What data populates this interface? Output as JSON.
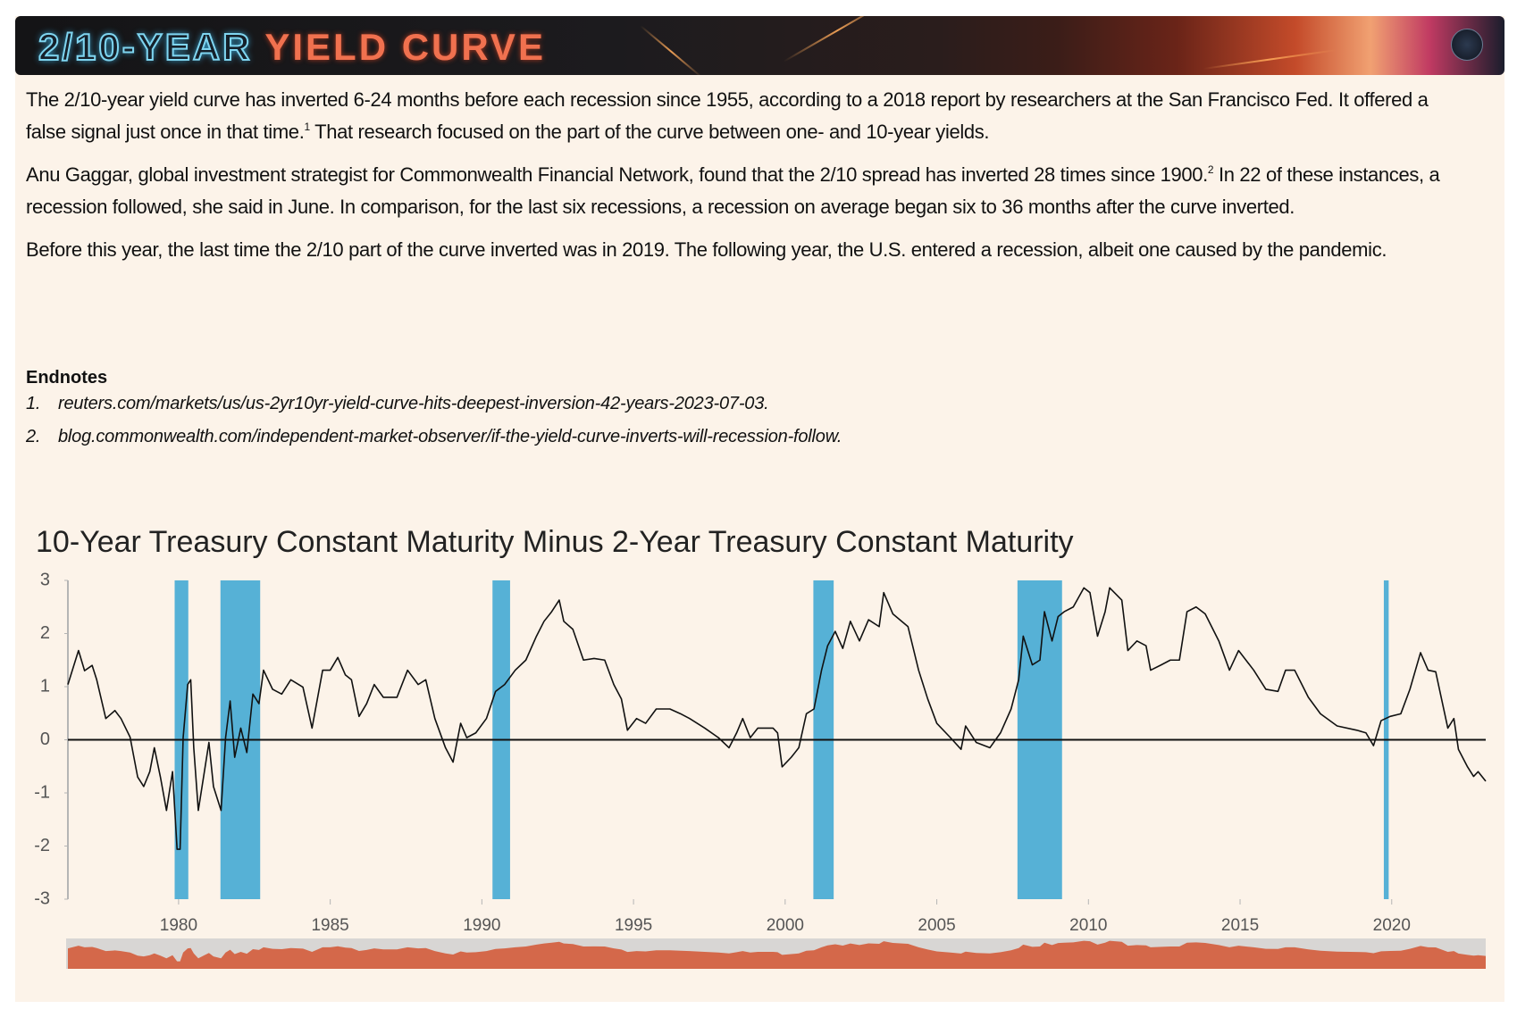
{
  "header": {
    "title_part1": "2/10-YEAR",
    "title_part2": "YIELD CURVE"
  },
  "body": {
    "paragraphs": [
      [
        "The 2/10-year yield curve has inverted 6-24 months before each recession since 1955, according to a 2018 report by researchers at the San Francisco Fed. It offered a false signal just once in that time.",
        "1",
        " That research focused on the part of the curve between one- and 10-year yields."
      ],
      [
        "Anu Gaggar, global investment strategist for Commonwealth Financial Network, found that the 2/10 spread has inverted 28 times since 1900.",
        "2",
        " In 22 of these instances, a recession followed, she said in June. In comparison, for the last six recessions, a recession on average began six to 36 months after the curve inverted."
      ],
      [
        "Before this year, the last time the 2/10 part of the curve inverted was in 2019. The following year, the U.S. entered a recession, albeit one caused by the pandemic."
      ]
    ]
  },
  "endnotes": {
    "heading": "Endnotes",
    "items": [
      {
        "number": "1.",
        "text": "reuters.com/markets/us/us-2yr10yr-yield-curve-hits-deepest-inversion-42-years-2023-07-03."
      },
      {
        "number": "2.",
        "text": "blog.commonwealth.com/independent-market-observer/if-the-yield-curve-inverts-will-recession-follow."
      }
    ]
  },
  "chart_data": {
    "type": "line",
    "title": "10-Year Treasury Constant Maturity Minus 2-Year Treasury Constant Maturity",
    "color": "#111111",
    "x": [
      1976.35,
      1976.7,
      1976.9,
      1977.15,
      1977.3,
      1977.6,
      1977.9,
      1978.1,
      1978.4,
      1978.65,
      1978.85,
      1979.05,
      1979.2,
      1979.4,
      1979.6,
      1979.8,
      1979.95,
      1980.05,
      1980.15,
      1980.3,
      1980.4,
      1980.5,
      1980.65,
      1980.85,
      1981.0,
      1981.15,
      1981.4,
      1981.55,
      1981.7,
      1981.85,
      1982.05,
      1982.25,
      1982.45,
      1982.65,
      1982.8,
      1983.1,
      1983.4,
      1983.7,
      1984.1,
      1984.4,
      1984.75,
      1985.0,
      1985.25,
      1985.5,
      1985.7,
      1985.95,
      1986.2,
      1986.45,
      1986.75,
      1987.2,
      1987.55,
      1987.9,
      1988.15,
      1988.45,
      1988.8,
      1989.05,
      1989.3,
      1989.5,
      1989.8,
      1990.15,
      1990.45,
      1990.75,
      1991.1,
      1991.45,
      1991.8,
      1992.05,
      1992.3,
      1992.55,
      1992.7,
      1993.0,
      1993.35,
      1993.7,
      1994.05,
      1994.35,
      1994.6,
      1994.8,
      1995.1,
      1995.4,
      1995.75,
      1996.2,
      1996.55,
      1996.85,
      1997.35,
      1997.8,
      1998.15,
      1998.4,
      1998.6,
      1998.85,
      1999.1,
      1999.6,
      1999.75,
      1999.9,
      2000.2,
      2000.45,
      2000.7,
      2000.95,
      2001.2,
      2001.4,
      2001.65,
      2001.9,
      2002.15,
      2002.45,
      2002.75,
      2003.1,
      2003.25,
      2003.55,
      2004.05,
      2004.4,
      2004.7,
      2005.0,
      2005.45,
      2005.8,
      2005.95,
      2006.3,
      2006.75,
      2007.1,
      2007.45,
      2007.7,
      2007.85,
      2008.15,
      2008.4,
      2008.55,
      2008.8,
      2009.0,
      2009.2,
      2009.5,
      2009.85,
      2010.05,
      2010.3,
      2010.55,
      2010.7,
      2011.1,
      2011.3,
      2011.6,
      2011.9,
      2012.05,
      2012.4,
      2012.7,
      2013.0,
      2013.25,
      2013.55,
      2013.85,
      2014.3,
      2014.65,
      2014.95,
      2015.45,
      2015.85,
      2016.25,
      2016.5,
      2016.8,
      2017.25,
      2017.65,
      2018.2,
      2018.85,
      2019.15,
      2019.4,
      2019.65,
      2019.95,
      2020.3,
      2020.6,
      2020.95,
      2021.2,
      2021.45,
      2021.85,
      2022.05,
      2022.2,
      2022.5,
      2022.7,
      2022.85,
      2023.1
    ],
    "values": [
      1.04,
      1.68,
      1.3,
      1.4,
      1.13,
      0.4,
      0.55,
      0.4,
      0.05,
      -0.7,
      -0.88,
      -0.6,
      -0.15,
      -0.7,
      -1.33,
      -0.6,
      -2.06,
      -2.06,
      0.04,
      1.04,
      1.13,
      -0.15,
      -1.33,
      -0.6,
      -0.05,
      -0.88,
      -1.33,
      0.04,
      0.73,
      -0.33,
      0.22,
      -0.24,
      0.86,
      0.68,
      1.31,
      0.95,
      0.86,
      1.13,
      0.99,
      0.22,
      1.31,
      1.31,
      1.55,
      1.22,
      1.13,
      0.44,
      0.68,
      1.04,
      0.8,
      0.8,
      1.31,
      1.04,
      1.13,
      0.4,
      -0.15,
      -0.42,
      0.31,
      0.04,
      0.13,
      0.4,
      0.91,
      1.04,
      1.31,
      1.5,
      1.95,
      2.23,
      2.41,
      2.63,
      2.23,
      2.08,
      1.5,
      1.53,
      1.5,
      1.04,
      0.77,
      0.18,
      0.4,
      0.31,
      0.58,
      0.58,
      0.49,
      0.4,
      0.22,
      0.04,
      -0.15,
      0.13,
      0.4,
      0.04,
      0.22,
      0.22,
      0.13,
      -0.51,
      -0.33,
      -0.15,
      0.49,
      0.58,
      1.31,
      1.77,
      2.04,
      1.72,
      2.23,
      1.86,
      2.26,
      2.13,
      2.77,
      2.37,
      2.13,
      1.31,
      0.77,
      0.31,
      0.04,
      -0.18,
      0.26,
      -0.05,
      -0.15,
      0.13,
      0.58,
      1.13,
      1.95,
      1.41,
      1.5,
      2.41,
      1.86,
      2.32,
      2.41,
      2.5,
      2.86,
      2.77,
      1.95,
      2.41,
      2.86,
      2.63,
      1.68,
      1.86,
      1.77,
      1.31,
      1.41,
      1.5,
      1.5,
      2.41,
      2.5,
      2.37,
      1.86,
      1.31,
      1.68,
      1.31,
      0.95,
      0.91,
      1.31,
      1.31,
      0.8,
      0.49,
      0.26,
      0.18,
      0.13,
      -0.11,
      0.36,
      0.44,
      0.49,
      0.95,
      1.64,
      1.31,
      1.28,
      0.22,
      0.4,
      -0.18,
      -0.51,
      -0.69,
      -0.6,
      -0.78
    ],
    "bands": [
      {
        "start": 1979.87,
        "end": 1980.32
      },
      {
        "start": 1981.38,
        "end": 1982.69
      },
      {
        "start": 1990.35,
        "end": 1990.93
      },
      {
        "start": 2000.93,
        "end": 2001.6
      },
      {
        "start": 2007.66,
        "end": 2009.13
      },
      {
        "start": 2019.74,
        "end": 2019.9
      }
    ],
    "band_color": "#56b1d6",
    "xlim": [
      1976.35,
      2023.1
    ],
    "xticks": [
      1980,
      1985,
      1990,
      1995,
      2000,
      2005,
      2010,
      2015,
      2020
    ],
    "ylim": [
      -3,
      3
    ],
    "yticks": [
      -3,
      -2,
      -1,
      0,
      1,
      2,
      3
    ],
    "zero_line": true,
    "navigator": true,
    "navigator_color": "#d4684a"
  }
}
